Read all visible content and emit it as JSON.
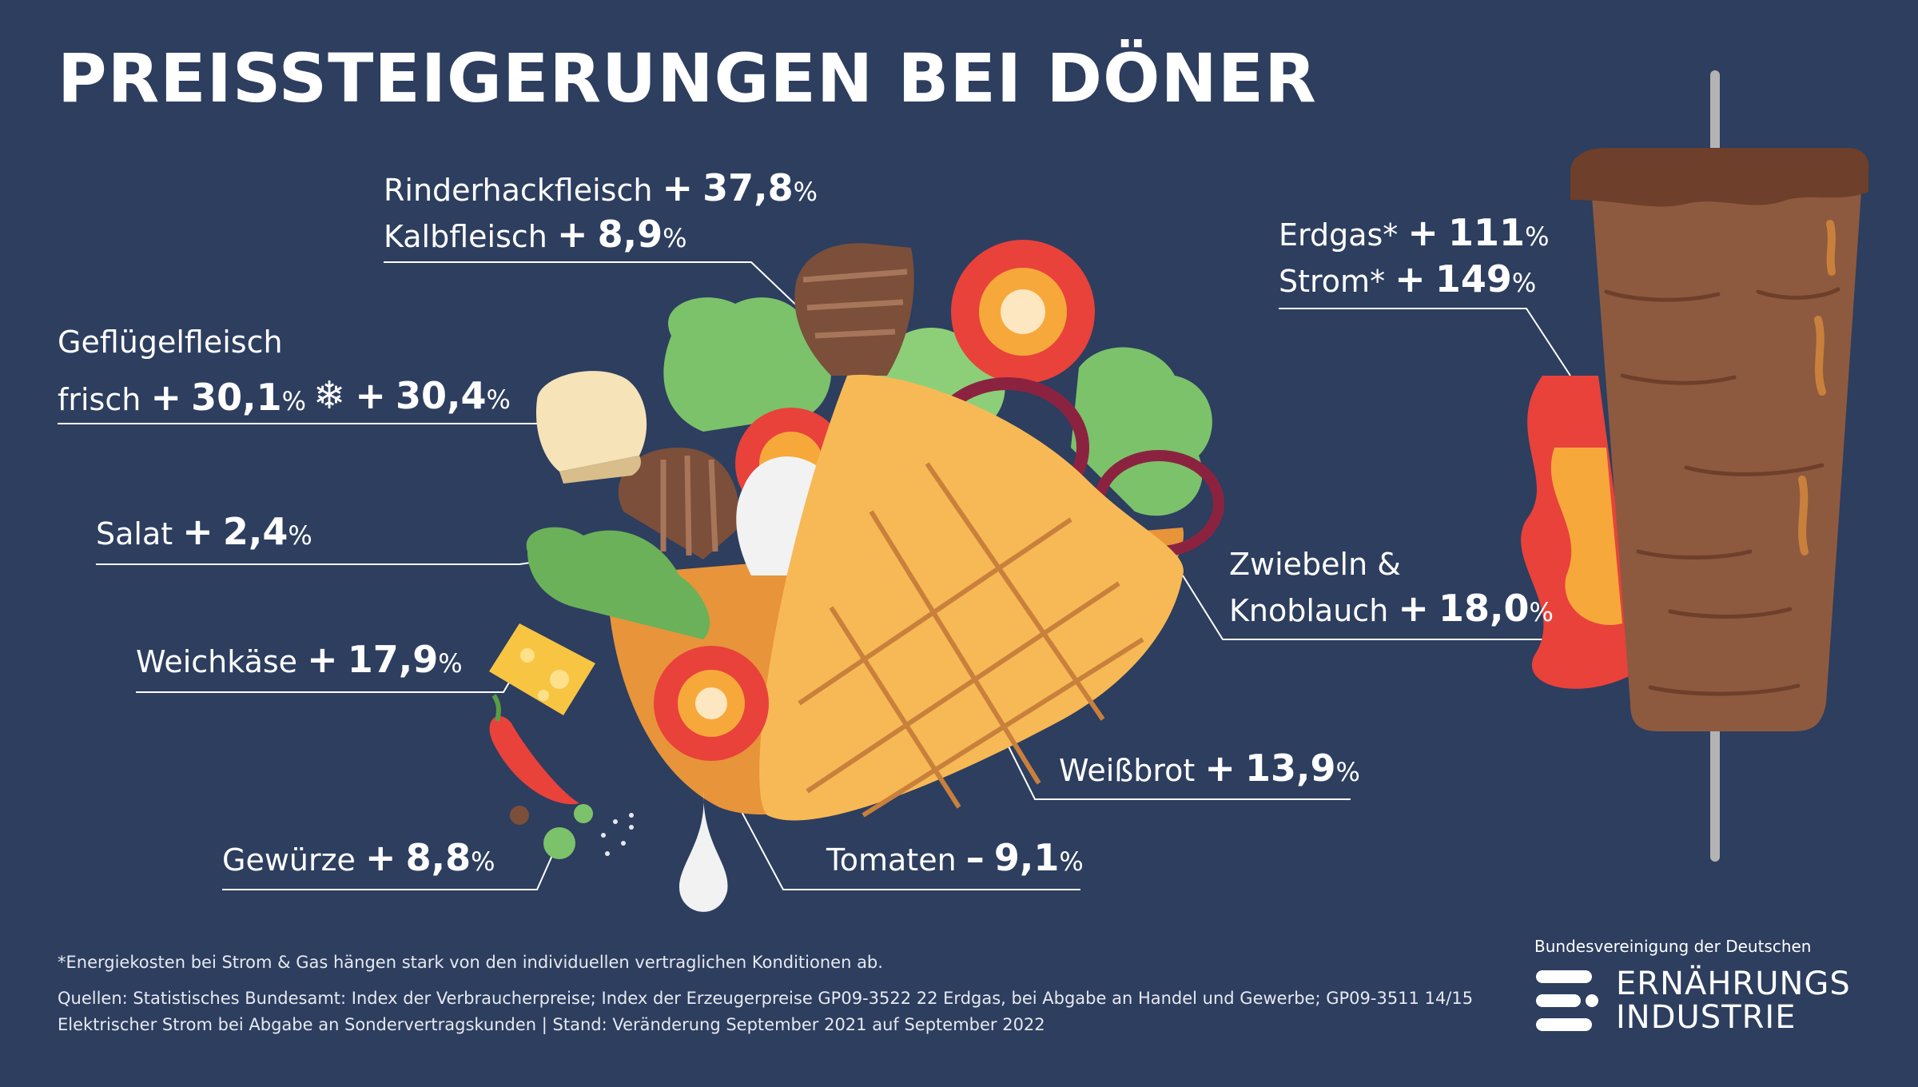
{
  "title": "PREISSTEIGERUNGEN BEI DÖNER",
  "items": {
    "rinderhack": {
      "name": "Rinderhackfleisch",
      "sign": "+",
      "value": "37,8",
      "unit": "%"
    },
    "kalb": {
      "name": "Kalbfleisch",
      "sign": "+",
      "value": "8,9",
      "unit": "%"
    },
    "gefluegel_line1": "Geflügelfleisch",
    "gefluegel_frisch": {
      "name": "frisch",
      "sign": "+",
      "value": "30,1",
      "unit": "%"
    },
    "gefluegel_tk": {
      "sign": "+",
      "value": "30,4",
      "unit": "%"
    },
    "salat": {
      "name": "Salat",
      "sign": "+",
      "value": "2,4",
      "unit": "%"
    },
    "weichkaese": {
      "name": "Weichkäse",
      "sign": "+",
      "value": "17,9",
      "unit": "%"
    },
    "gewuerze": {
      "name": "Gewürze",
      "sign": "+",
      "value": "8,8",
      "unit": "%"
    },
    "tomaten": {
      "name": "Tomaten",
      "sign": "–",
      "value": "9,1",
      "unit": "%"
    },
    "weissbrot": {
      "name": "Weißbrot",
      "sign": "+",
      "value": "13,9",
      "unit": "%"
    },
    "zwiebeln_line1": "Zwiebeln &",
    "zwiebeln": {
      "name": "Knoblauch",
      "sign": "+",
      "value": "18,0",
      "unit": "%"
    },
    "erdgas": {
      "name": "Erdgas*",
      "sign": "+",
      "value": "111",
      "unit": "%"
    },
    "strom": {
      "name": "Strom*",
      "sign": "+",
      "value": "149",
      "unit": "%"
    }
  },
  "footnote": "*Energiekosten bei Strom & Gas hängen stark von den individuellen vertraglichen Konditionen ab.",
  "sources_line1": "Quellen: Statistisches Bundesamt: Index der Verbraucherpreise; Index der Erzeugerpreise GP09-3522 22 Erdgas, bei Abgabe an Handel und Gewerbe; GP09-3511 14/15",
  "sources_line2": "Elektrischer Strom bei Abgabe an Sondervertragskunden | Stand: Veränderung September 2021 auf September 2022",
  "logo": {
    "top": "Bundesvereinigung der Deutschen",
    "line1": "ERNÄHRUNGS",
    "line2": "INDUSTRIE"
  },
  "icons": [
    "snowflake-icon",
    "doener-illustration-icon",
    "doener-spiess-icon",
    "logo-mark-icon"
  ],
  "colors": {
    "background": "#2d3e5f",
    "text": "#ffffff",
    "leader_line": "#ffffff"
  }
}
